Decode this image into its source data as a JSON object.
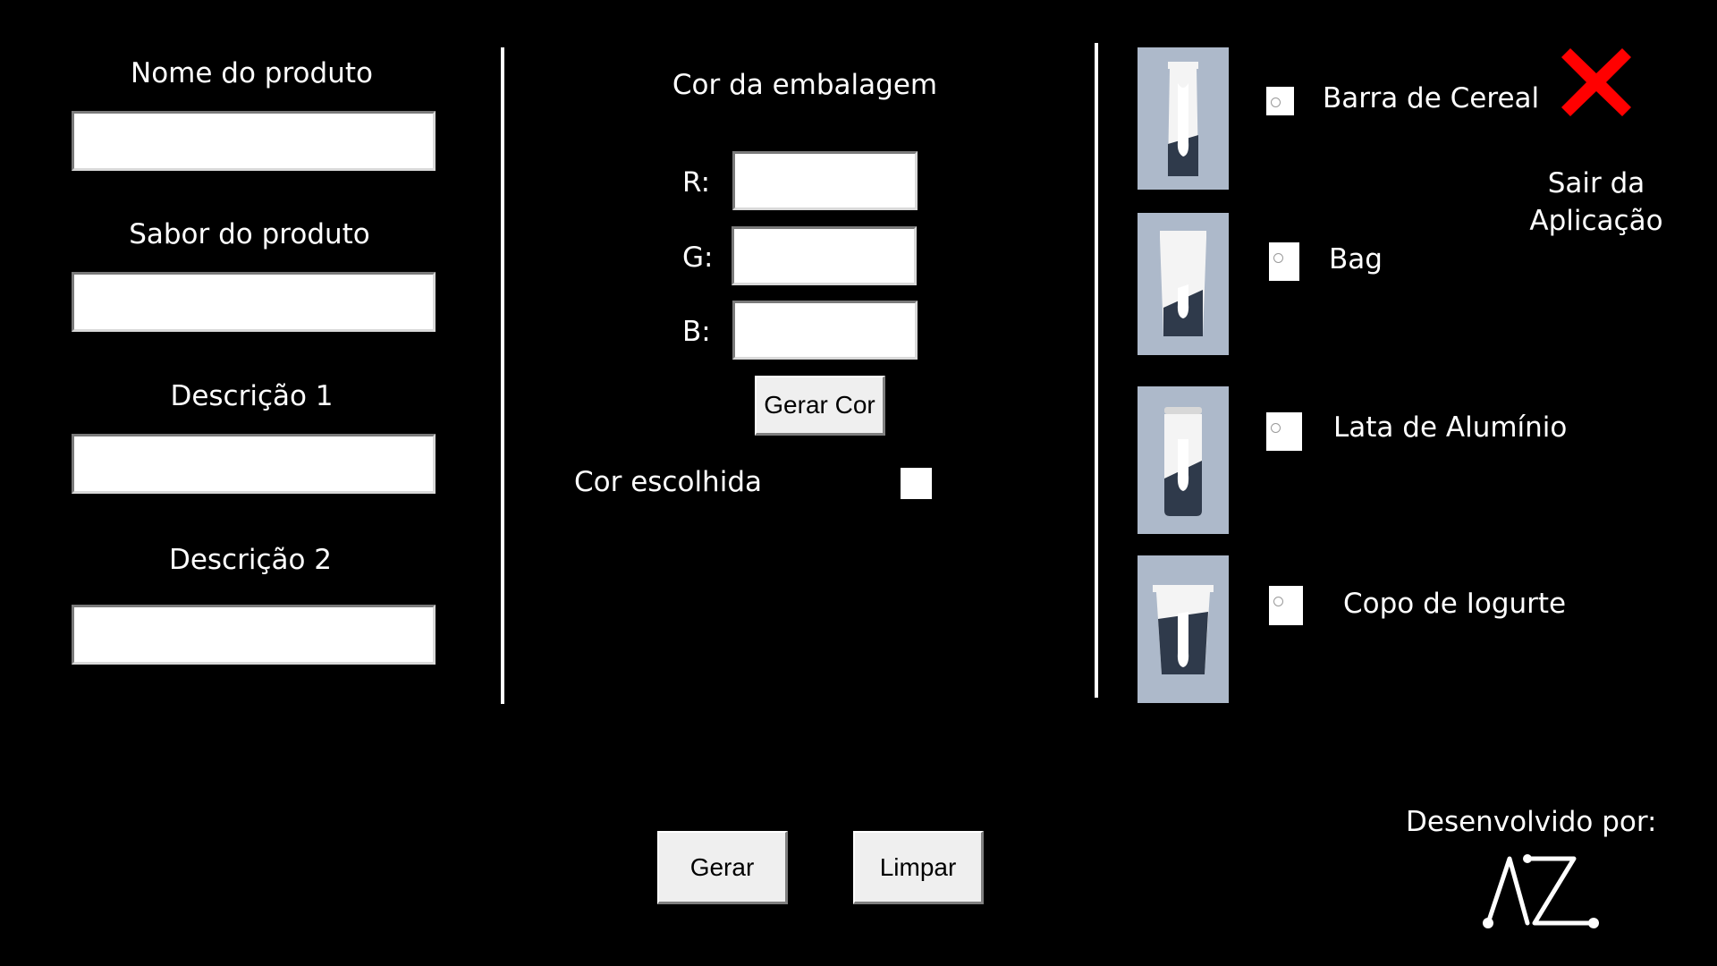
{
  "product_form": {
    "name_label": "Nome do produto",
    "name_value": "",
    "flavor_label": "Sabor do produto",
    "flavor_value": "",
    "desc1_label": "Descrição 1",
    "desc1_value": "",
    "desc2_label": "Descrição 2",
    "desc2_value": ""
  },
  "color_panel": {
    "title": "Cor da embalagem",
    "r_label": "R:",
    "r_value": "",
    "g_label": "G:",
    "g_value": "",
    "b_label": "B:",
    "b_value": "",
    "generate_color_label": "Gerar Cor",
    "chosen_color_label": "Cor escolhida",
    "chosen_color_hex": "#ffffff"
  },
  "packaging": {
    "options": [
      {
        "label": "Barra de Cereal",
        "icon": "cereal-bar-package-icon",
        "selected": false
      },
      {
        "label": "Bag",
        "icon": "bag-package-icon",
        "selected": false
      },
      {
        "label": "Lata de Alumínio",
        "icon": "aluminum-can-icon",
        "selected": false
      },
      {
        "label": "Copo de Iogurte",
        "icon": "yogurt-cup-icon",
        "selected": false
      }
    ],
    "thumb_bg": "#adb9ca",
    "package_dark": "#2f3a4b"
  },
  "exit": {
    "icon": "close-x-icon",
    "icon_color": "#ff0000",
    "label_line1": "Sair da",
    "label_line2": "Aplicação"
  },
  "actions": {
    "generate_label": "Gerar",
    "clear_label": "Limpar"
  },
  "credits": {
    "label": "Desenvolvido por:",
    "logo_icon": "az-logo-icon"
  }
}
